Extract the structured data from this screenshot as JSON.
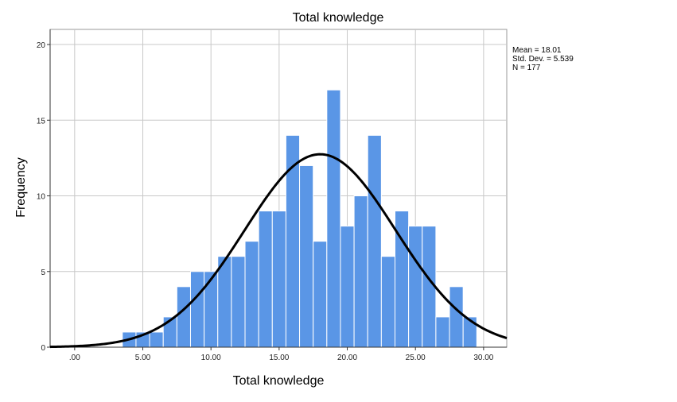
{
  "chart_data": {
    "type": "bar",
    "title": "Total knowledge",
    "xlabel": "Total knowledge",
    "ylabel": "Frequency",
    "xlim": [
      -1.8,
      31.7
    ],
    "ylim": [
      0,
      21
    ],
    "x_ticks": [
      0,
      5,
      10,
      15,
      20,
      25,
      30
    ],
    "x_tick_labels": [
      ".00",
      "5.00",
      "10.00",
      "15.00",
      "20.00",
      "25.00",
      "30.00"
    ],
    "y_ticks": [
      0,
      5,
      10,
      15,
      20
    ],
    "y_tick_labels": [
      "0",
      "5",
      "10",
      "15",
      "20"
    ],
    "grid": true,
    "bar_width": 1,
    "bins": [
      {
        "x": 4,
        "count": 1
      },
      {
        "x": 5,
        "count": 1
      },
      {
        "x": 6,
        "count": 1
      },
      {
        "x": 7,
        "count": 2
      },
      {
        "x": 8,
        "count": 4
      },
      {
        "x": 9,
        "count": 5
      },
      {
        "x": 10,
        "count": 5
      },
      {
        "x": 11,
        "count": 6
      },
      {
        "x": 12,
        "count": 6
      },
      {
        "x": 13,
        "count": 7
      },
      {
        "x": 14,
        "count": 9
      },
      {
        "x": 15,
        "count": 9
      },
      {
        "x": 16,
        "count": 14
      },
      {
        "x": 17,
        "count": 12
      },
      {
        "x": 18,
        "count": 7
      },
      {
        "x": 19,
        "count": 17
      },
      {
        "x": 20,
        "count": 8
      },
      {
        "x": 21,
        "count": 10
      },
      {
        "x": 22,
        "count": 14
      },
      {
        "x": 23,
        "count": 6
      },
      {
        "x": 24,
        "count": 9
      },
      {
        "x": 25,
        "count": 8
      },
      {
        "x": 26,
        "count": 8
      },
      {
        "x": 27,
        "count": 2
      },
      {
        "x": 28,
        "count": 4
      },
      {
        "x": 29,
        "count": 2
      }
    ],
    "normal_curve": {
      "mean": 18.01,
      "sd": 5.539,
      "n": 177,
      "bin_width": 1
    },
    "legend_position": "top-right",
    "stats_lines": [
      "Mean = 18.01",
      "Std. Dev. = 5.539",
      "N = 177"
    ],
    "colors": {
      "bar_fill": "#5a96e6",
      "bar_edge": "#ffffff",
      "curve": "#000000",
      "grid": "#c8c8c8",
      "frame": "#999999"
    }
  }
}
